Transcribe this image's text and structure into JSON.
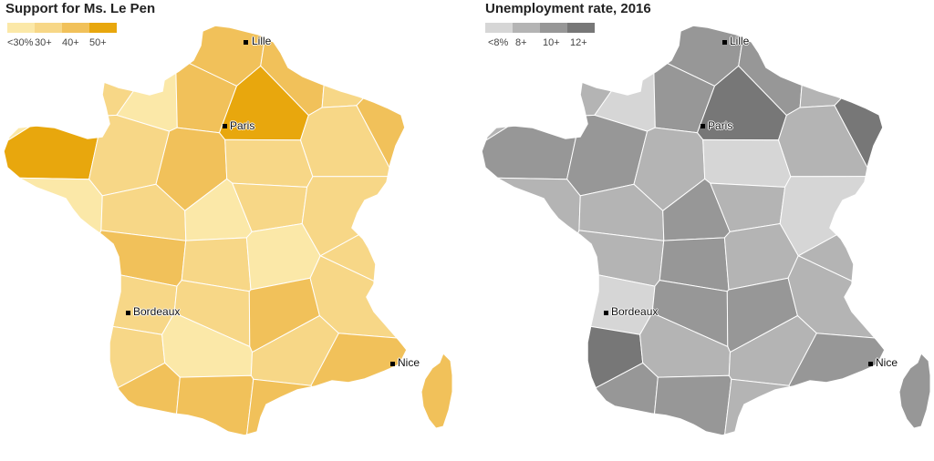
{
  "maps": [
    {
      "id": "lepen",
      "title": "Support for Ms. Le Pen",
      "legend": [
        {
          "label": "<30%",
          "color": "#fbe8a8"
        },
        {
          "label": "30+",
          "color": "#f7d787"
        },
        {
          "label": "40+",
          "color": "#f1c15a"
        },
        {
          "label": "50+",
          "color": "#e8a70d"
        }
      ],
      "region_levels": [
        1,
        1,
        2,
        2,
        1,
        0,
        0,
        2,
        3,
        2,
        3,
        1,
        2,
        1,
        1,
        0,
        1,
        0,
        1,
        1,
        1,
        2,
        1,
        0,
        1,
        1,
        1,
        1,
        2,
        1,
        2,
        1,
        0,
        1,
        2,
        1,
        2,
        2,
        2,
        1
      ],
      "cities": [
        {
          "name": "Lille",
          "label": "Lille"
        },
        {
          "name": "Paris",
          "label": "Paris"
        },
        {
          "name": "Bordeaux",
          "label": "Bordeaux"
        },
        {
          "name": "Nice",
          "label": "Nice"
        }
      ]
    },
    {
      "id": "unemployment",
      "title": "Unemployment rate, 2016",
      "legend": [
        {
          "label": "<8%",
          "color": "#d6d6d6"
        },
        {
          "label": "8+",
          "color": "#b4b4b4"
        },
        {
          "label": "10+",
          "color": "#979797"
        },
        {
          "label": "12+",
          "color": "#777777"
        }
      ],
      "region_levels": [
        1,
        1,
        2,
        2,
        1,
        1,
        0,
        2,
        3,
        3,
        2,
        2,
        1,
        0,
        1,
        1,
        1,
        2,
        1,
        0,
        1,
        1,
        2,
        1,
        1,
        0,
        0,
        2,
        2,
        1,
        3,
        3,
        1,
        1,
        2,
        1,
        2,
        2,
        1,
        1
      ],
      "cities": [
        {
          "name": "Lille",
          "label": "Lille"
        },
        {
          "name": "Paris",
          "label": "Paris"
        },
        {
          "name": "Bordeaux",
          "label": "Bordeaux"
        },
        {
          "name": "Nice",
          "label": "Nice"
        }
      ]
    }
  ]
}
